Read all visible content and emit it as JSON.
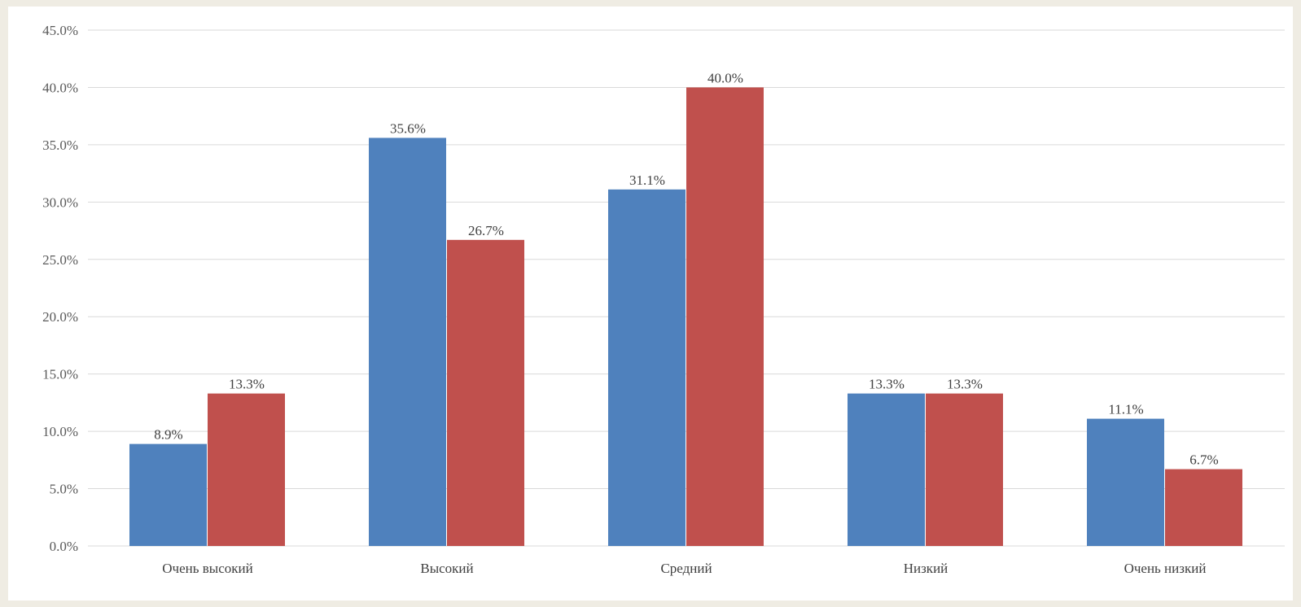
{
  "chart_data": {
    "type": "bar",
    "categories": [
      "Очень высокий",
      "Высокий",
      "Средний",
      "Низкий",
      "Очень низкий"
    ],
    "series": [
      {
        "values": [
          8.9,
          35.6,
          31.1,
          13.3,
          11.1
        ],
        "color": "#4f81bd"
      },
      {
        "values": [
          13.3,
          26.7,
          40.0,
          13.3,
          6.7
        ],
        "color": "#c0504d"
      }
    ],
    "value_format": "%",
    "ylim": [
      0,
      45
    ],
    "y_ticks": [
      0,
      5,
      10,
      15,
      20,
      25,
      30,
      35,
      40,
      45
    ],
    "grid": true,
    "legend": "none",
    "title": "",
    "xlabel": "",
    "ylabel": ""
  }
}
